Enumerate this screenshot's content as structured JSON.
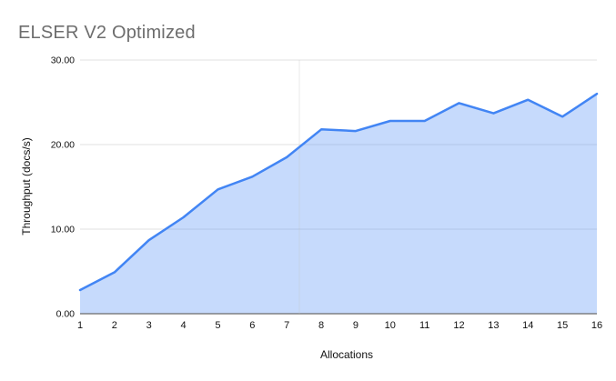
{
  "chart_data": {
    "type": "area",
    "title": "ELSER V2 Optimized",
    "xlabel": "Allocations",
    "ylabel": "Throughput (docs/s)",
    "x": [
      1,
      2,
      3,
      4,
      5,
      6,
      7,
      8,
      9,
      10,
      11,
      12,
      13,
      14,
      15,
      16
    ],
    "series": [
      {
        "name": "Throughput",
        "values": [
          2.8,
          4.9,
          8.7,
          11.4,
          14.7,
          16.2,
          18.5,
          21.8,
          21.6,
          22.8,
          22.8,
          24.9,
          23.7,
          25.3,
          23.3,
          26.0
        ]
      }
    ],
    "xlim": [
      1,
      16
    ],
    "ylim": [
      0,
      30
    ],
    "yticks": [
      0,
      10,
      20,
      30
    ],
    "ytick_labels": [
      "0.00",
      "10.00",
      "20.00",
      "30.00"
    ],
    "xtick_labels": [
      "1",
      "2",
      "3",
      "4",
      "5",
      "6",
      "7",
      "8",
      "9",
      "10",
      "11",
      "12",
      "13",
      "14",
      "15",
      "16"
    ],
    "grid": "horizontal",
    "legend": "none",
    "colors": {
      "series_line": "#4285f4",
      "series_fill": "#4285f4",
      "series_fill_opacity": 0.3,
      "gridline": "#e2e2e2",
      "baseline": "#6b6b6b",
      "title_text": "#6d6d6d",
      "tick_text": "#111111",
      "background": "#ffffff"
    }
  }
}
